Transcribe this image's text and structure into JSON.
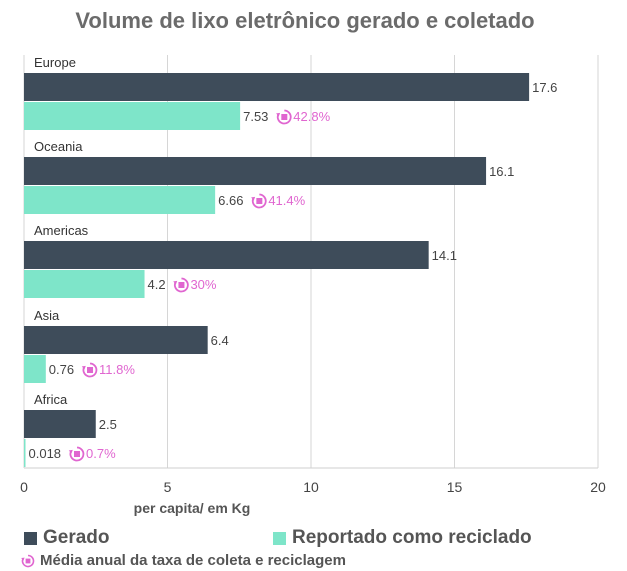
{
  "chart_data": {
    "type": "bar",
    "orientation": "horizontal",
    "title": "Volume de lixo eletrônico gerado e coletado",
    "xlabel": "per capita/ em Kg",
    "ylabel": "",
    "xlim": [
      0,
      20
    ],
    "xticks": [
      0,
      5,
      10,
      15,
      20
    ],
    "grid": true,
    "categories": [
      "Europe",
      "Oceania",
      "Americas",
      "Asia",
      "Africa"
    ],
    "series": [
      {
        "name": "Gerado",
        "color": "#3e4c5a",
        "values": [
          17.6,
          16.1,
          14.1,
          6.4,
          2.5
        ],
        "labels": [
          "17.6",
          "16.1",
          "14.1",
          "6.4",
          "2.5"
        ]
      },
      {
        "name": "Reportado como reciclado",
        "color": "#7ee5c9",
        "values": [
          7.53,
          6.66,
          4.2,
          0.76,
          0.018
        ],
        "labels": [
          "7.53",
          "6.66",
          "4.2",
          "0.76",
          "0.018"
        ]
      }
    ],
    "rates": [
      "42.8%",
      "41.4%",
      "30%",
      "11.8%",
      "0.7%"
    ],
    "rate_color": "#e066d0",
    "rate_icon": "recycle-rate-icon",
    "legend": [
      {
        "label": "Gerado",
        "color": "#3e4c5a"
      },
      {
        "label": "Reportado como reciclado",
        "color": "#7ee5c9"
      }
    ],
    "note": "Média anual da taxa de coleta e reciclagem"
  }
}
